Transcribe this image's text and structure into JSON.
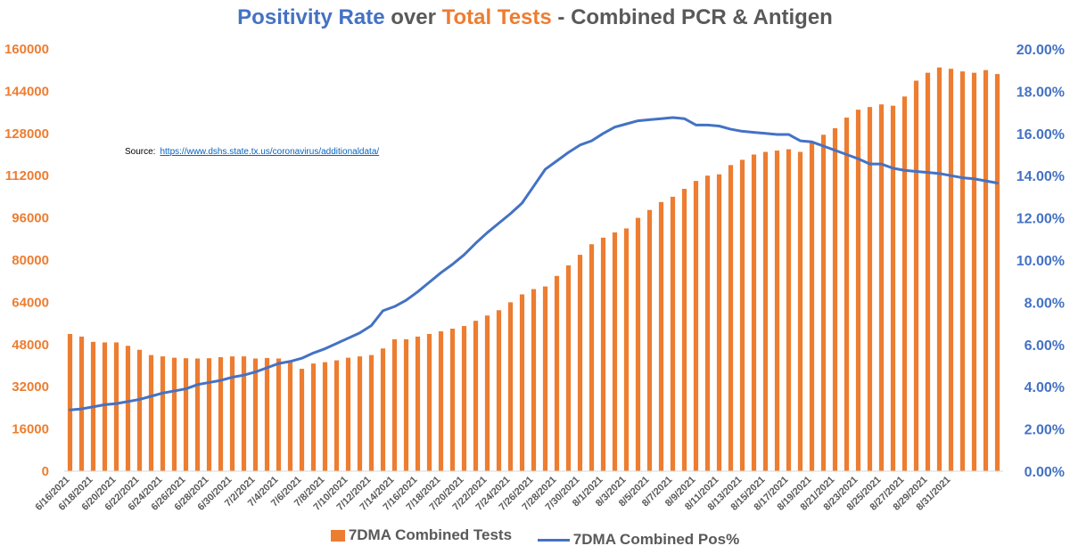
{
  "title": {
    "part1": "Positivity Rate",
    "part2": " over ",
    "part3": "Total Tests",
    "part4": " - Combined PCR & Antigen"
  },
  "source": {
    "label": "Source:",
    "url": "https://www.dshs.state.tx.us/coronavirus/additionaldata/"
  },
  "colors": {
    "bars": "#ED7D31",
    "line": "#4472C4",
    "title_blue": "#4472C4",
    "title_orange": "#ED7D31",
    "title_gray": "#595959",
    "link": "#0563C1"
  },
  "chart_data": {
    "type": "bar+line",
    "grid": false,
    "legend_position": "bottom",
    "x_tick_labels": [
      "6/16/2021",
      "6/18/2021",
      "6/20/2021",
      "6/22/2021",
      "6/24/2021",
      "6/26/2021",
      "6/28/2021",
      "6/30/2021",
      "7/2/2021",
      "7/4/2021",
      "7/6/2021",
      "7/8/2021",
      "7/10/2021",
      "7/12/2021",
      "7/14/2021",
      "7/16/2021",
      "7/18/2021",
      "7/20/2021",
      "7/22/2021",
      "7/24/2021",
      "7/26/2021",
      "7/28/2021",
      "7/30/2021",
      "8/1/2021",
      "8/3/2021",
      "8/5/2021",
      "8/7/2021",
      "8/9/2021",
      "8/11/2021",
      "8/13/2021",
      "8/15/2021",
      "8/17/2021",
      "8/19/2021",
      "8/21/2021",
      "8/23/2021",
      "8/25/2021",
      "8/27/2021",
      "8/29/2021",
      "8/31/2021"
    ],
    "left_axis": {
      "range": [
        0,
        160000
      ],
      "ticks": [
        "0",
        "16000",
        "32000",
        "48000",
        "64000",
        "80000",
        "96000",
        "112000",
        "128000",
        "144000",
        "160000"
      ],
      "color": "#ED7D31"
    },
    "right_axis": {
      "range": [
        0,
        20
      ],
      "ticks": [
        "0.00%",
        "2.00%",
        "4.00%",
        "6.00%",
        "8.00%",
        "10.00%",
        "12.00%",
        "14.00%",
        "16.00%",
        "18.00%",
        "20.00%"
      ],
      "color": "#4472C4"
    },
    "series": [
      {
        "name": "7DMA Combined Tests",
        "type": "bar",
        "axis": "left",
        "color": "#ED7D31",
        "values": [
          52000,
          51000,
          49000,
          48800,
          48800,
          47500,
          46000,
          44000,
          43500,
          43000,
          42800,
          42700,
          42800,
          43200,
          43500,
          43500,
          42700,
          42900,
          42700,
          41800,
          38800,
          40800,
          41300,
          42000,
          43000,
          43500,
          44000,
          46500,
          50000,
          50000,
          51000,
          52000,
          53000,
          54000,
          55000,
          57000,
          59000,
          61000,
          64000,
          67000,
          69000,
          70000,
          74000,
          78000,
          82000,
          86000,
          88500,
          90500,
          92000,
          96000,
          99000,
          102000,
          104000,
          107000,
          110000,
          112000,
          112500,
          116000,
          118000,
          120000,
          121000,
          121500,
          122000,
          121000,
          125000,
          127500,
          130000,
          134000,
          137000,
          138000,
          139000,
          138500,
          142000,
          148000,
          151000,
          153000,
          152500,
          151500,
          151000,
          152000,
          150500
        ]
      },
      {
        "name": "7DMA Combined Pos%",
        "type": "line",
        "axis": "right",
        "color": "#4472C4",
        "values": [
          2.9,
          2.95,
          3.05,
          3.15,
          3.2,
          3.3,
          3.4,
          3.55,
          3.7,
          3.8,
          3.9,
          4.1,
          4.2,
          4.3,
          4.45,
          4.55,
          4.7,
          4.9,
          5.1,
          5.2,
          5.35,
          5.6,
          5.8,
          6.05,
          6.3,
          6.55,
          6.9,
          7.6,
          7.8,
          8.1,
          8.5,
          8.95,
          9.4,
          9.8,
          10.25,
          10.8,
          11.3,
          11.75,
          12.2,
          12.7,
          13.5,
          14.3,
          14.7,
          15.1,
          15.45,
          15.65,
          16.0,
          16.3,
          16.45,
          16.6,
          16.65,
          16.7,
          16.75,
          16.7,
          16.4,
          16.4,
          16.35,
          16.2,
          16.1,
          16.05,
          16.0,
          15.95,
          15.95,
          15.65,
          15.6,
          15.4,
          15.2,
          15.0,
          14.8,
          14.55,
          14.55,
          14.35,
          14.25,
          14.2,
          14.15,
          14.1,
          14.0,
          13.9,
          13.85,
          13.75,
          13.65
        ]
      }
    ]
  }
}
